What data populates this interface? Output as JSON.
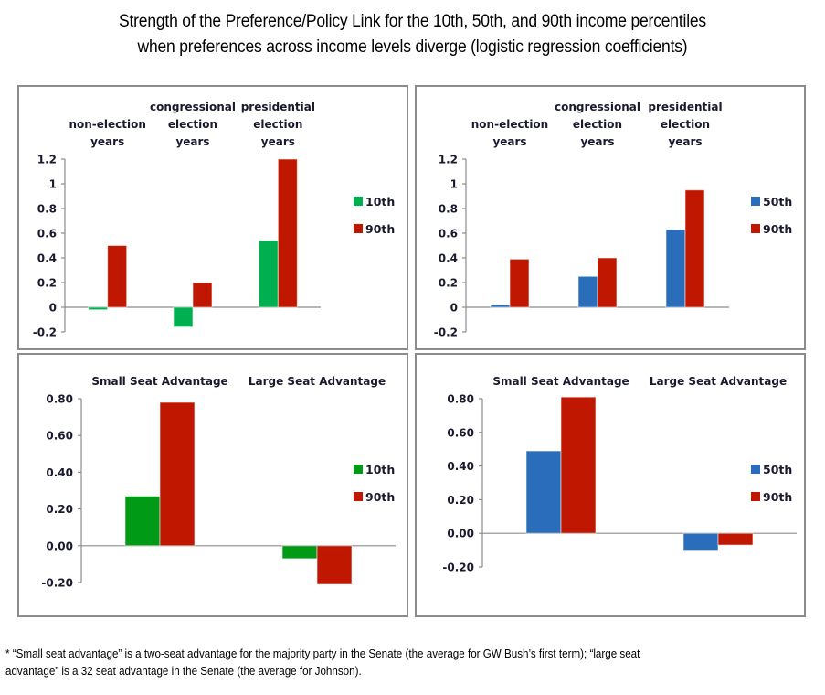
{
  "title_line1": "Strength of the Preference/Policy Link for the 10th, 50th, and 90th income percentiles",
  "title_line2": "when preferences across income levels diverge (logistic regression coefficients)",
  "footnote_line1": "* “Small seat advantage” is a two-seat advantage for the majority party in the Senate (the average for GW Bush’s first term); “large seat",
  "footnote_line2": "advantage” is a 32 seat advantage in the Senate (the average for Johnson).",
  "chart_data": [
    {
      "id": "top-left",
      "type": "bar",
      "title": "",
      "categories": [
        [
          "non-election",
          "years"
        ],
        [
          "congressional",
          "election",
          "years"
        ],
        [
          "presidential",
          "election",
          "years"
        ]
      ],
      "series": [
        {
          "name": "10th",
          "color": "#00B050",
          "values": [
            -0.02,
            -0.16,
            0.54
          ]
        },
        {
          "name": "90th",
          "color": "#C01800",
          "values": [
            0.5,
            0.2,
            1.2
          ]
        }
      ],
      "ylim": [
        -0.2,
        1.2
      ],
      "yticks": [
        -0.2,
        0,
        0.2,
        0.4,
        0.6,
        0.8,
        1,
        1.2
      ],
      "ytick_labels": [
        "-0.2",
        "0",
        "0.2",
        "0.4",
        "0.6",
        "0.8",
        "1",
        "1.2"
      ],
      "xlabel": "",
      "ylabel": "",
      "legend": "right",
      "grid": false
    },
    {
      "id": "top-right",
      "type": "bar",
      "title": "",
      "categories": [
        [
          "non-election",
          "years"
        ],
        [
          "congressional",
          "election",
          "years"
        ],
        [
          "presidential",
          "election",
          "years"
        ]
      ],
      "series": [
        {
          "name": "50th",
          "color": "#2A6EBB",
          "values": [
            0.02,
            0.25,
            0.63
          ]
        },
        {
          "name": "90th",
          "color": "#C01800",
          "values": [
            0.39,
            0.4,
            0.95
          ]
        }
      ],
      "ylim": [
        -0.2,
        1.2
      ],
      "yticks": [
        -0.2,
        0,
        0.2,
        0.4,
        0.6,
        0.8,
        1,
        1.2
      ],
      "ytick_labels": [
        "-0.2",
        "0",
        "0.2",
        "0.4",
        "0.6",
        "0.8",
        "1",
        "1.2"
      ],
      "xlabel": "",
      "ylabel": "",
      "legend": "right",
      "grid": false
    },
    {
      "id": "bottom-left",
      "type": "bar",
      "title": "",
      "categories": [
        [
          "Small Seat Advantage"
        ],
        [
          "Large Seat Advantage"
        ]
      ],
      "series": [
        {
          "name": "10th",
          "color": "#009A16",
          "values": [
            0.27,
            -0.07
          ]
        },
        {
          "name": "90th",
          "color": "#C01800",
          "values": [
            0.78,
            -0.21
          ]
        }
      ],
      "ylim": [
        -0.2,
        0.8
      ],
      "yticks": [
        -0.2,
        0,
        0.2,
        0.4,
        0.6,
        0.8
      ],
      "ytick_labels": [
        "-0.20",
        "0.00",
        "0.20",
        "0.40",
        "0.60",
        "0.80"
      ],
      "xlabel": "",
      "ylabel": "",
      "legend": "right",
      "grid": false
    },
    {
      "id": "bottom-right",
      "type": "bar",
      "title": "",
      "categories": [
        [
          "Small Seat Advantage"
        ],
        [
          "Large Seat Advantage"
        ]
      ],
      "series": [
        {
          "name": "50th",
          "color": "#2A6EBB",
          "values": [
            0.49,
            -0.1
          ]
        },
        {
          "name": "90th",
          "color": "#C01800",
          "values": [
            0.81,
            -0.07
          ]
        }
      ],
      "ylim": [
        -0.2,
        0.8
      ],
      "yticks": [
        -0.2,
        0,
        0.2,
        0.4,
        0.6,
        0.8
      ],
      "ytick_labels": [
        "-0.20",
        "0.00",
        "0.20",
        "0.40",
        "0.60",
        "0.80"
      ],
      "xlabel": "",
      "ylabel": "",
      "legend": "right",
      "grid": false
    }
  ]
}
